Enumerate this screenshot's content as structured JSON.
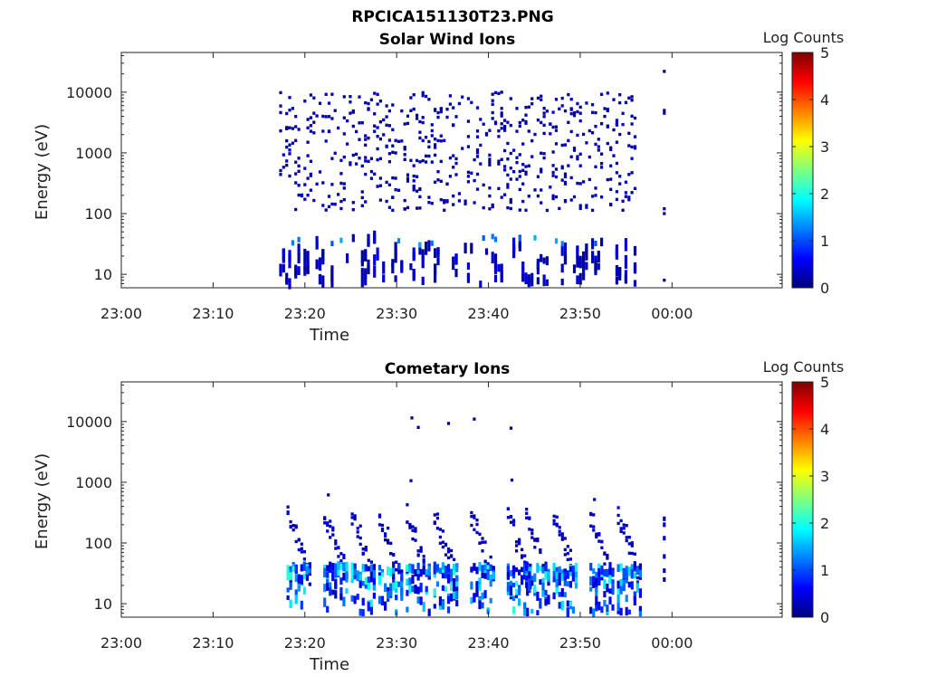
{
  "figure": {
    "title": "RPCICA151130T23.PNG"
  },
  "chart_data": [
    {
      "type": "heatmap",
      "title": "Solar Wind Ions",
      "xlabel": "Time",
      "ylabel": "Energy (eV)",
      "y_scale": "log",
      "ylim": [
        6,
        45000
      ],
      "xlim": [
        "23:00",
        "00:12"
      ],
      "x_ticks": [
        "23:00",
        "23:10",
        "23:20",
        "23:30",
        "23:40",
        "23:50",
        "00:00"
      ],
      "y_ticks": [
        "10",
        "100",
        "1000",
        "10000"
      ],
      "colorbar": {
        "label": "Log Counts",
        "range": [
          0,
          5
        ],
        "ticks": [
          "0",
          "1",
          "2",
          "3",
          "4",
          "5"
        ],
        "colormap": "jet"
      },
      "grid": false,
      "data_time_range": [
        "23:17",
        "23:56"
      ],
      "extra_burst_time": "23:59",
      "dominant_level": 0.1
    },
    {
      "type": "heatmap",
      "title": "Cometary Ions",
      "xlabel": "Time",
      "ylabel": "Energy (eV)",
      "y_scale": "log",
      "ylim": [
        6,
        45000
      ],
      "xlim": [
        "23:00",
        "00:12"
      ],
      "x_ticks": [
        "23:00",
        "23:10",
        "23:20",
        "23:30",
        "23:40",
        "23:50",
        "00:00"
      ],
      "y_ticks": [
        "10",
        "100",
        "1000",
        "10000"
      ],
      "colorbar": {
        "label": "Log Counts",
        "range": [
          0,
          5
        ],
        "ticks": [
          "0",
          "1",
          "2",
          "3",
          "4",
          "5"
        ],
        "colormap": "jet"
      },
      "grid": false,
      "burst_times": [
        "23:18",
        "23:22",
        "23:25",
        "23:28",
        "23:31",
        "23:34",
        "23:38",
        "23:42",
        "23:44",
        "23:47",
        "23:51",
        "23:54"
      ],
      "extra_burst_time": "23:59",
      "max_level": 2.1
    }
  ]
}
